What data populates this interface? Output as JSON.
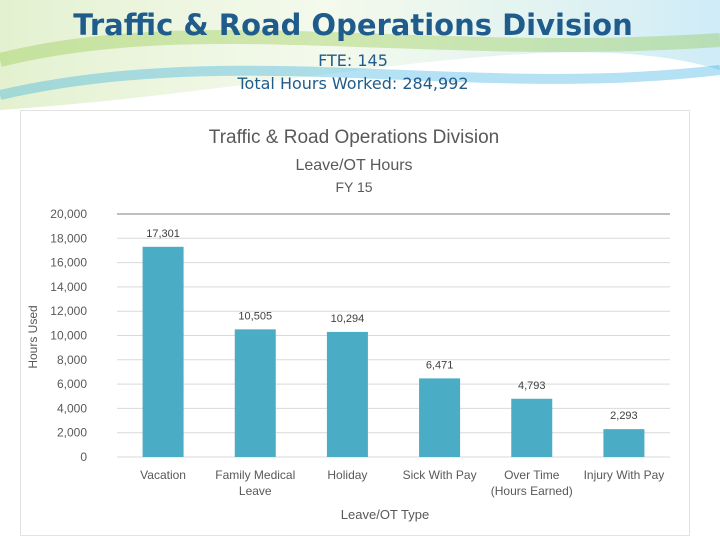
{
  "slide": {
    "title": "Traffic & Road Operations Division",
    "fte": "FTE: 145",
    "total_hours": "Total Hours Worked: 284,992"
  },
  "colors": {
    "title": "#1f5c8c",
    "bar": "#4bacc6",
    "swoosh_green": "#8dc63f",
    "swoosh_blue": "#29a9e0",
    "axis_text": "#595959"
  },
  "chart_data": {
    "type": "bar",
    "title": "Traffic & Road Operations Division",
    "subtitle": "Leave/OT Hours",
    "subtitle2": "FY 15",
    "xlabel": "Leave/OT Type",
    "ylabel": "Hours Used",
    "ylim": [
      0,
      20000
    ],
    "yticks": [
      "0",
      "2,000",
      "4,000",
      "6,000",
      "8,000",
      "10,000",
      "12,000",
      "14,000",
      "16,000",
      "18,000",
      "20,000"
    ],
    "categories": [
      [
        "Vacation"
      ],
      [
        "Family Medical",
        "Leave"
      ],
      [
        "Holiday"
      ],
      [
        "Sick With Pay"
      ],
      [
        "Over Time",
        "(Hours Earned)"
      ],
      [
        "Injury With Pay"
      ]
    ],
    "values": [
      17301,
      10505,
      10294,
      6471,
      4793,
      2293
    ],
    "labels": [
      "17,301",
      "10,505",
      "10,294",
      "6,471",
      "4,793",
      "2,293"
    ],
    "grid": true,
    "legend": "none"
  }
}
